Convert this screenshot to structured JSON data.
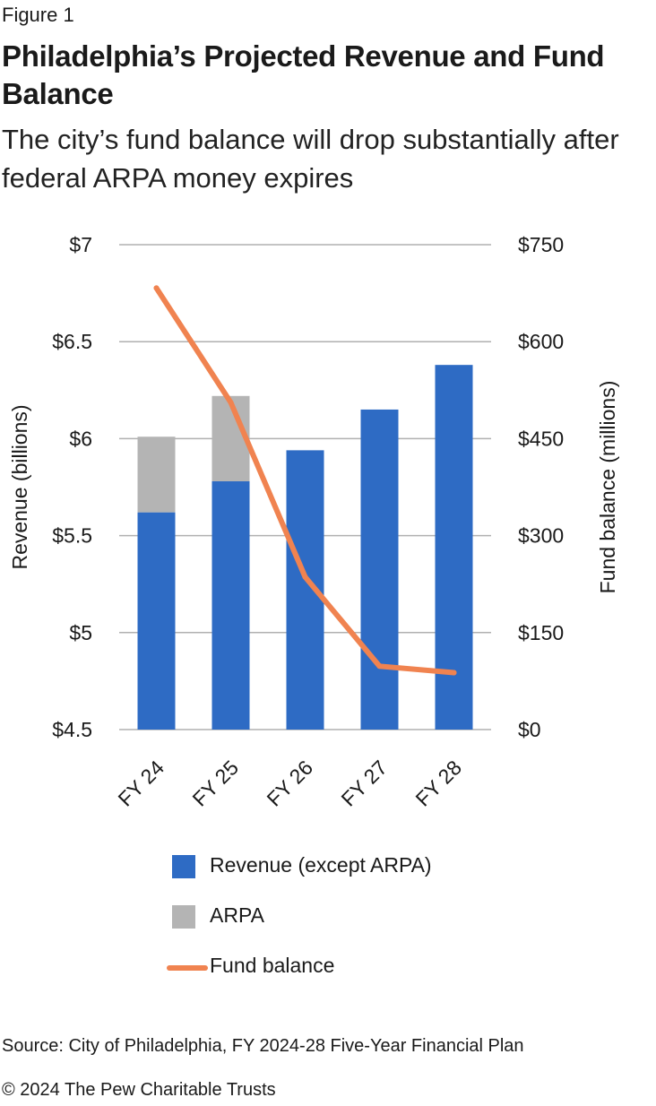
{
  "figure_label": "Figure 1",
  "title": "Philadelphia’s Projected Revenue and Fund Balance",
  "subtitle": "The city’s fund balance will drop substantially after federal ARPA money expires",
  "colors": {
    "revenue": "#2e6bc4",
    "arpa": "#b4b4b4",
    "fund_balance": "#f08350",
    "gridline": "#b0b0b0"
  },
  "chart_data": {
    "type": "bar",
    "categories": [
      "FY 24",
      "FY 25",
      "FY 26",
      "FY 27",
      "FY 28"
    ],
    "series": [
      {
        "name": "Revenue (except ARPA)",
        "kind": "stacked-bar",
        "axis": "left",
        "values": [
          5.62,
          5.78,
          5.94,
          6.15,
          6.38
        ]
      },
      {
        "name": "ARPA",
        "kind": "stacked-bar",
        "axis": "left",
        "values": [
          0.39,
          0.44,
          0,
          0,
          0
        ]
      },
      {
        "name": "Fund balance",
        "kind": "line",
        "axis": "right",
        "values": [
          683,
          506,
          236,
          98,
          88
        ]
      }
    ],
    "ylabel": "Revenue (billions)",
    "ylabel_right": "Fund balance (millions)",
    "ylim": [
      4.5,
      7
    ],
    "ylim_right": [
      0,
      750
    ],
    "yticks": [
      {
        "value": 7,
        "label": "$7"
      },
      {
        "value": 6.5,
        "label": "$6.5"
      },
      {
        "value": 6,
        "label": "$6"
      },
      {
        "value": 5.5,
        "label": "$5.5"
      },
      {
        "value": 5,
        "label": "$5"
      },
      {
        "value": 4.5,
        "label": "$4.5"
      }
    ],
    "yticks_right": [
      {
        "value": 750,
        "label": "$750"
      },
      {
        "value": 600,
        "label": "$600"
      },
      {
        "value": 450,
        "label": "$450"
      },
      {
        "value": 300,
        "label": "$300"
      },
      {
        "value": 150,
        "label": "$150"
      },
      {
        "value": 0,
        "label": "$0"
      }
    ],
    "grid": true,
    "legend_position": "bottom"
  },
  "legend": [
    {
      "label": "Revenue (except ARPA)",
      "shape": "square",
      "color_key": "revenue"
    },
    {
      "label": "ARPA",
      "shape": "square",
      "color_key": "arpa"
    },
    {
      "label": "Fund balance",
      "shape": "line",
      "color_key": "fund_balance"
    }
  ],
  "source": "Source: City of Philadelphia, FY 2024-28 Five-Year Financial Plan",
  "copyright": "© 2024 The Pew Charitable Trusts"
}
